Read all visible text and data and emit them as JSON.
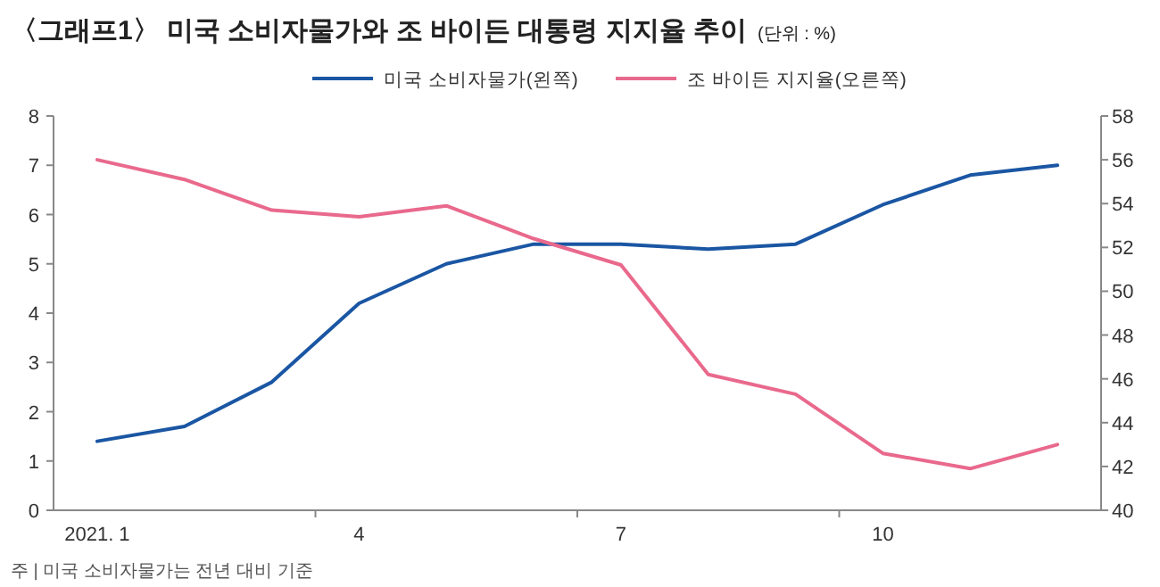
{
  "chart_data": {
    "type": "line",
    "title": "〈그래프1〉 미국 소비자물가와 조 바이든 대통령 지지율 추이",
    "subtitle": "(단위 : %)",
    "categories": [
      "2021. 1",
      null,
      null,
      "4",
      null,
      null,
      "7",
      null,
      null,
      "10",
      null,
      null
    ],
    "series": [
      {
        "name": "미국 소비자물가(왼쪽)",
        "color": "#1a56a3",
        "values": [
          1.4,
          1.7,
          2.6,
          4.2,
          5.0,
          5.4,
          5.4,
          5.3,
          5.4,
          6.2,
          6.8,
          7.0
        ]
      },
      {
        "name": "조 바이든 지지율(오른쪽)",
        "color": "#e9698c",
        "axis": "y2",
        "values": [
          56,
          55.1,
          53.7,
          53.4,
          53.9,
          52.4,
          51.2,
          46.2,
          45.3,
          42.6,
          41.9,
          43.0
        ]
      }
    ],
    "ylim": [
      0,
      8
    ],
    "yticks": [
      0,
      1,
      2,
      3,
      4,
      5,
      6,
      7,
      8
    ],
    "y2lim": [
      40,
      58
    ],
    "y2ticks": [
      40,
      42,
      44,
      46,
      48,
      50,
      52,
      54,
      56,
      58
    ],
    "legend": "top",
    "grid": false,
    "marker": "none",
    "line_style": "solid",
    "annotations": [
      "주 | 미국 소비자물가는 전년 대비 기준"
    ]
  }
}
